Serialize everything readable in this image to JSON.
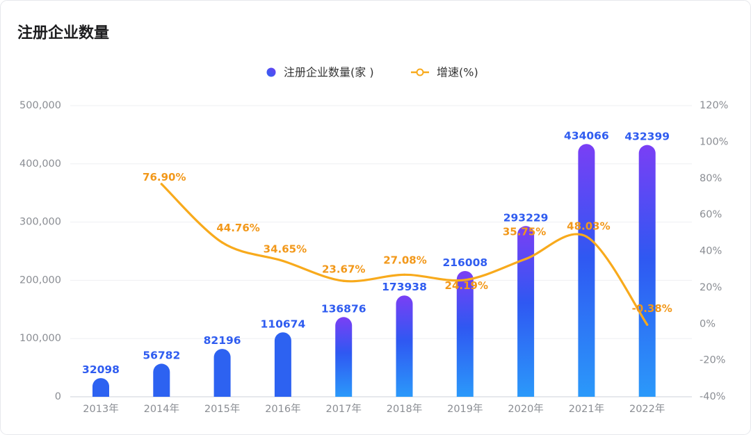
{
  "chart_data": {
    "type": "bar",
    "title": "注册企业数量",
    "categories": [
      "2013年",
      "2014年",
      "2015年",
      "2016年",
      "2017年",
      "2018年",
      "2019年",
      "2020年",
      "2021年",
      "2022年"
    ],
    "series": [
      {
        "name": "注册企业数量(家 )",
        "type": "bar",
        "y_axis": "left",
        "values": [
          32098,
          56782,
          82196,
          110674,
          136876,
          173938,
          216008,
          293229,
          434066,
          432399
        ]
      },
      {
        "name": "增速(%)",
        "type": "line",
        "y_axis": "right",
        "smooth": true,
        "values": [
          null,
          76.9,
          44.76,
          34.65,
          23.67,
          27.08,
          24.19,
          35.75,
          48.03,
          -0.38
        ]
      }
    ],
    "y_left": {
      "min": 0,
      "max": 500000,
      "interval": 100000,
      "ticks": [
        "0",
        "100,000",
        "200,000",
        "300,000",
        "400,000",
        "500,000"
      ]
    },
    "y_right": {
      "min": -40,
      "max": 120,
      "interval": 20,
      "ticks": [
        "-40%",
        "-20%",
        "0%",
        "20%",
        "40%",
        "60%",
        "80%",
        "100%",
        "120%"
      ]
    },
    "grid": true,
    "data_labels": true,
    "legend_position": "top-center",
    "colors": {
      "bar_solid": "#2d62f1",
      "bar_gradient": [
        "#7a3ff5",
        "#2f58f2",
        "#2b99fa"
      ],
      "bar_label": "#2f5cf0",
      "line": "#f8aa1c",
      "line_label": "#f2981a",
      "legend_bar": [
        "#2d63f0",
        "#6b3ff3"
      ],
      "card_border": "#e6e8ec"
    }
  }
}
